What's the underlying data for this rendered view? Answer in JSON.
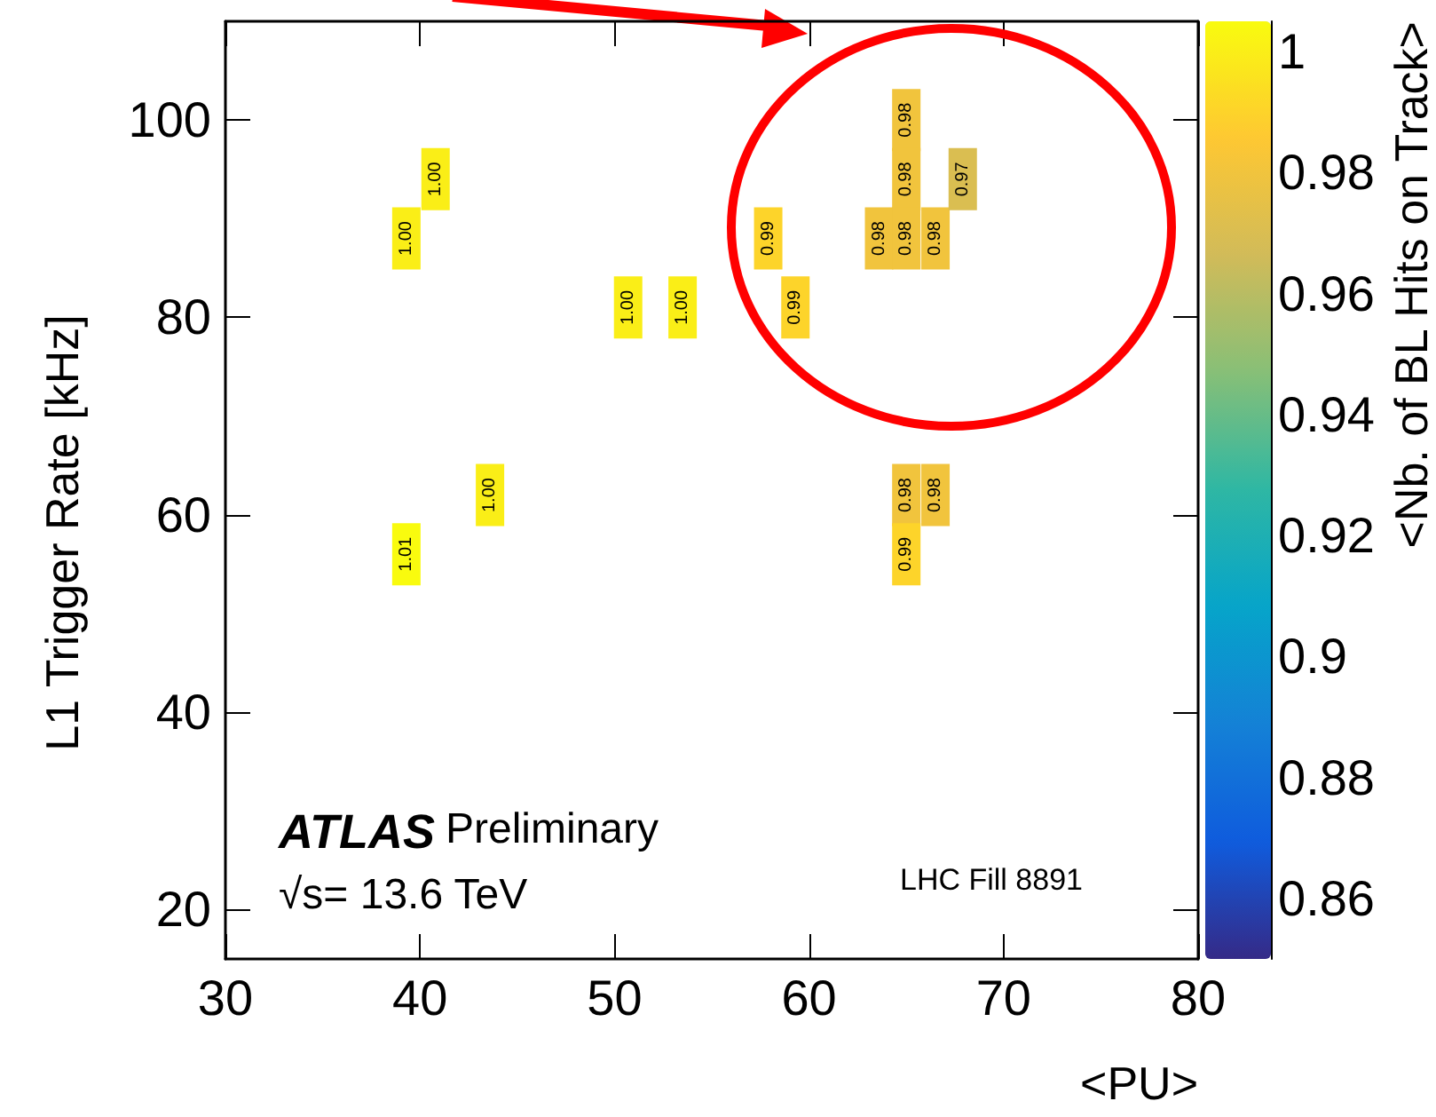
{
  "chart_data": {
    "type": "scatter",
    "marker": "square",
    "xlabel": "<PU>",
    "ylabel": "L1 Trigger Rate [kHz]",
    "clabel": "<Nb. of BL Hits on Track>",
    "x": [
      40.8,
      39.3,
      50.7,
      53.5,
      43.6,
      39.3,
      57.9,
      59.3,
      63.6,
      65.0,
      65.0,
      65.0,
      66.5,
      67.9,
      65.0,
      65.0,
      66.5
    ],
    "values": [
      94,
      88,
      81,
      81,
      62,
      56,
      88,
      81,
      88,
      100,
      94,
      88,
      88,
      94,
      62,
      56,
      62
    ],
    "cvalues": [
      1.0,
      1.0,
      1.0,
      1.0,
      1.0,
      1.01,
      0.99,
      0.99,
      0.98,
      0.98,
      0.98,
      0.98,
      0.98,
      0.97,
      0.98,
      0.99,
      0.98
    ],
    "xlim": [
      30,
      80
    ],
    "xticks": [
      30,
      40,
      50,
      60,
      70,
      80
    ],
    "ylim": [
      15,
      110
    ],
    "yticks": [
      20,
      40,
      60,
      80,
      100
    ],
    "clim": [
      0.85,
      1.005
    ],
    "cticks": [
      0.86,
      0.88,
      0.9,
      0.92,
      0.94,
      0.96,
      0.98,
      1
    ],
    "annotations": [
      "ATLAS",
      "Preliminary",
      "√s= 13.6 TeV",
      "LHC Fill 8891",
      {
        "text": "1.00",
        "x": 40.8,
        "y": 94
      },
      {
        "text": "1.00",
        "x": 39.3,
        "y": 88
      },
      {
        "text": "1.00",
        "x": 50.7,
        "y": 81
      },
      {
        "text": "1.00",
        "x": 53.5,
        "y": 81
      },
      {
        "text": "1.00",
        "x": 43.6,
        "y": 62
      },
      {
        "text": "1.01",
        "x": 39.3,
        "y": 56
      },
      {
        "text": "0.99",
        "x": 57.9,
        "y": 88
      },
      {
        "text": "0.99",
        "x": 59.3,
        "y": 81
      },
      {
        "text": "0.98",
        "x": 63.6,
        "y": 88
      },
      {
        "text": "0.98",
        "x": 65.0,
        "y": 100
      },
      {
        "text": "0.98",
        "x": 65.0,
        "y": 94
      },
      {
        "text": "0.98",
        "x": 65.0,
        "y": 88
      },
      {
        "text": "0.98",
        "x": 66.5,
        "y": 88
      },
      {
        "text": "0.97",
        "x": 67.9,
        "y": 94
      },
      {
        "text": "0.98",
        "x": 65.0,
        "y": 62
      },
      {
        "text": "0.99",
        "x": 65.0,
        "y": 56
      },
      {
        "text": "0.98",
        "x": 66.5,
        "y": 62
      }
    ]
  }
}
